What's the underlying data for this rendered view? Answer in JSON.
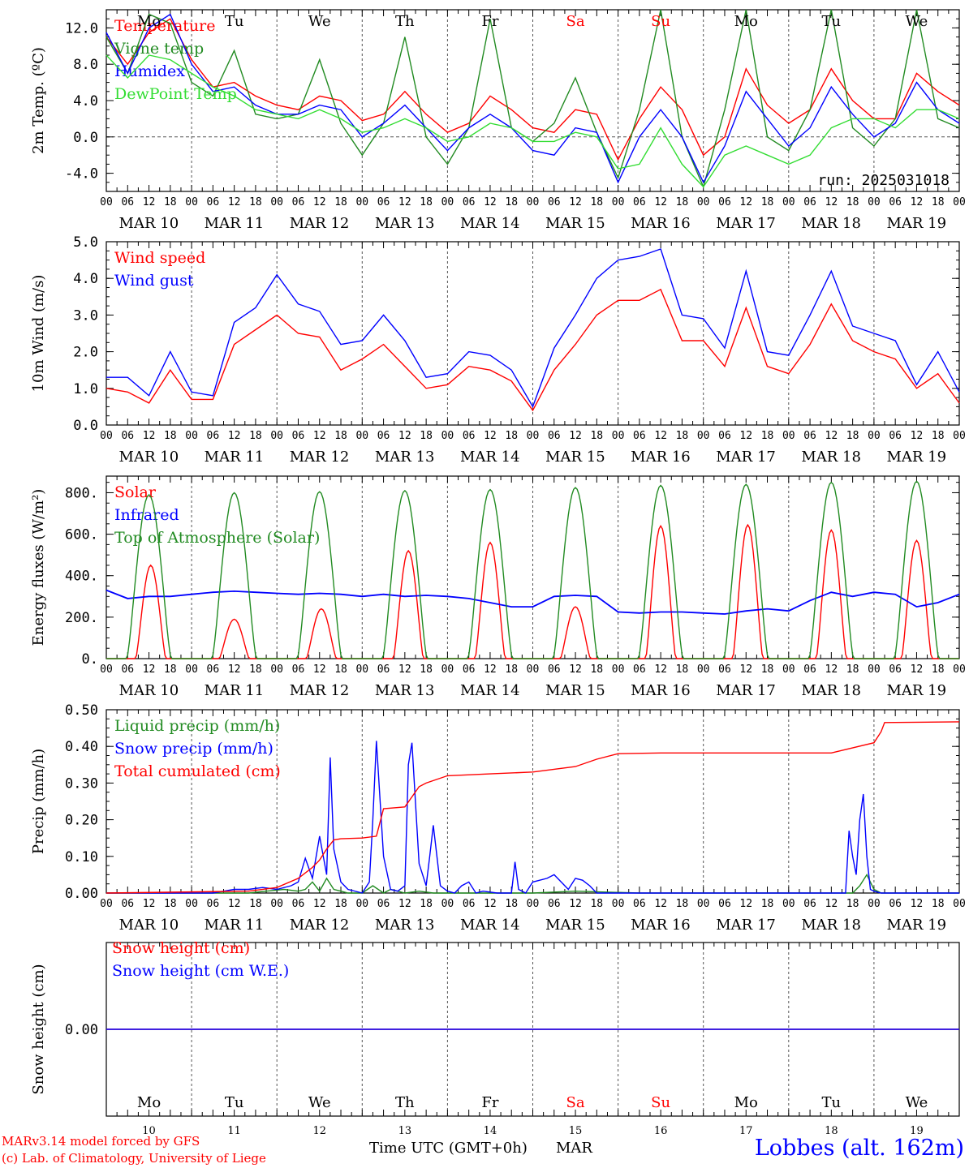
{
  "colors": {
    "red": "#ff0000",
    "green": "#228b22",
    "blue": "#0000ff",
    "lightgreen": "#33dd33",
    "black": "#000000"
  },
  "day_names": [
    {
      "label": "Mo",
      "weekend": false
    },
    {
      "label": "Tu",
      "weekend": false
    },
    {
      "label": "We",
      "weekend": false
    },
    {
      "label": "Th",
      "weekend": false
    },
    {
      "label": "Fr",
      "weekend": false
    },
    {
      "label": "Sa",
      "weekend": true
    },
    {
      "label": "Su",
      "weekend": true
    },
    {
      "label": "Mo",
      "weekend": false
    },
    {
      "label": "Tu",
      "weekend": false
    },
    {
      "label": "We",
      "weekend": false
    }
  ],
  "date_labels": [
    "MAR 10",
    "MAR 11",
    "MAR 12",
    "MAR 13",
    "MAR 14",
    "MAR 15",
    "MAR 16",
    "MAR 17",
    "MAR 18",
    "MAR 19"
  ],
  "hour_ticks": [
    "00",
    "06",
    "12",
    "18"
  ],
  "final_hour_tick": "00",
  "day_numbers": [
    "10",
    "11",
    "12",
    "13",
    "14",
    "15",
    "16",
    "17",
    "18",
    "19"
  ],
  "footer": {
    "model_line": "MARv3.14 model forced by GFS",
    "credit_line": "(c) Lab. of Climatology, University of Liege",
    "xlabel": "Time UTC (GMT+0h)",
    "month": "MAR",
    "station": "Lobbes (alt. 162m)"
  },
  "chart_data": [
    {
      "type": "line",
      "ylabel": "2m Temp. (ºC)",
      "ylim": [
        -6,
        14
      ],
      "yticks": [
        -4,
        0,
        4,
        8,
        12
      ],
      "ytick_labels": [
        "-4.0",
        "0.0",
        "4.0",
        "8.0",
        "12.0"
      ],
      "zero_line": true,
      "run_label": "run: 2025031018",
      "x_unit": "hours since MAR 10 00 UTC",
      "series": [
        {
          "name": "Temperature",
          "color": "red",
          "x": [
            0,
            6,
            12,
            18,
            24,
            30,
            36,
            42,
            48,
            54,
            60,
            66,
            72,
            78,
            84,
            90,
            96,
            102,
            108,
            114,
            120,
            126,
            132,
            138,
            144,
            150,
            156,
            162,
            168,
            174,
            180,
            186,
            192,
            198,
            204,
            210,
            216,
            222,
            228,
            234,
            240
          ],
          "y": [
            11,
            8,
            11.5,
            13,
            8.5,
            5.5,
            6,
            4.5,
            3.5,
            3,
            4.5,
            4,
            1.8,
            2.5,
            5,
            2.5,
            0.5,
            1.5,
            4.5,
            3,
            1,
            0.5,
            3,
            2.5,
            -2.5,
            2,
            5.5,
            3,
            -2,
            0,
            7.5,
            3.5,
            1.5,
            3,
            7.5,
            4,
            2,
            2,
            7,
            5,
            3.5
          ]
        },
        {
          "name": "Vigne temp",
          "color": "green",
          "x": [
            0,
            6,
            12,
            18,
            24,
            30,
            36,
            42,
            48,
            54,
            60,
            66,
            72,
            78,
            84,
            90,
            96,
            102,
            108,
            114,
            120,
            126,
            132,
            138,
            144,
            150,
            156,
            162,
            168,
            174,
            180,
            186,
            192,
            198,
            204,
            210,
            216,
            222,
            228,
            234,
            240
          ],
          "y": [
            11,
            7,
            13.5,
            12.5,
            6,
            4.5,
            9.5,
            2.5,
            2,
            2.5,
            8.5,
            1.5,
            -2,
            1.5,
            11,
            0,
            -3,
            1,
            13,
            1,
            -0.5,
            1.5,
            6.5,
            0.5,
            -4.5,
            3,
            14,
            0,
            -5.5,
            3,
            14,
            0,
            -1.5,
            3,
            14,
            1,
            -1,
            2,
            14,
            2,
            1
          ]
        },
        {
          "name": "Humidex",
          "color": "blue",
          "x": [
            0,
            6,
            12,
            18,
            24,
            30,
            36,
            42,
            48,
            54,
            60,
            66,
            72,
            78,
            84,
            90,
            96,
            102,
            108,
            114,
            120,
            126,
            132,
            138,
            144,
            150,
            156,
            162,
            168,
            174,
            180,
            186,
            192,
            198,
            204,
            210,
            216,
            222,
            228,
            234,
            240
          ],
          "y": [
            11.5,
            7,
            12,
            13.5,
            8,
            5,
            5.5,
            3.5,
            2.5,
            2.5,
            3.5,
            3,
            0,
            1.5,
            3.5,
            1,
            -1.5,
            1,
            2.5,
            1,
            -1.5,
            -2,
            1,
            0.5,
            -5,
            0,
            3,
            0,
            -5,
            -1,
            5,
            2,
            -1,
            1,
            5.5,
            2.5,
            0,
            1.5,
            6,
            3,
            1.5
          ]
        },
        {
          "name": "DewPoint Temp",
          "color": "lightgreen",
          "x": [
            0,
            6,
            12,
            18,
            24,
            30,
            36,
            42,
            48,
            54,
            60,
            66,
            72,
            78,
            84,
            90,
            96,
            102,
            108,
            114,
            120,
            126,
            132,
            138,
            144,
            150,
            156,
            162,
            168,
            174,
            180,
            186,
            192,
            198,
            204,
            210,
            216,
            222,
            228,
            234,
            240
          ],
          "y": [
            9,
            6.5,
            9,
            8.5,
            7,
            5.5,
            4.5,
            3,
            2.5,
            2,
            3,
            2,
            0.5,
            1,
            2,
            1,
            -0.5,
            0,
            1.5,
            1,
            -0.5,
            -0.5,
            0.5,
            0,
            -3.5,
            -3,
            1,
            -3,
            -5.5,
            -2,
            -1,
            -2,
            -3,
            -2,
            1,
            2,
            2,
            1,
            3,
            3,
            2
          ]
        }
      ]
    },
    {
      "type": "line",
      "ylabel": "10m Wind (m/s)",
      "ylim": [
        0,
        5
      ],
      "yticks": [
        0,
        1,
        2,
        3,
        4,
        5
      ],
      "ytick_labels": [
        "0.0",
        "1.0",
        "2.0",
        "3.0",
        "4.0",
        "5.0"
      ],
      "series": [
        {
          "name": "Wind speed",
          "color": "red",
          "x": [
            0,
            6,
            12,
            18,
            24,
            30,
            36,
            42,
            48,
            54,
            60,
            66,
            72,
            78,
            84,
            90,
            96,
            102,
            108,
            114,
            120,
            126,
            132,
            138,
            144,
            150,
            156,
            162,
            168,
            174,
            180,
            186,
            192,
            198,
            204,
            210,
            216,
            222,
            228,
            234,
            240
          ],
          "y": [
            1,
            0.9,
            0.6,
            1.5,
            0.7,
            0.7,
            2.2,
            2.6,
            3,
            2.5,
            2.4,
            1.5,
            1.8,
            2.2,
            1.6,
            1,
            1.1,
            1.6,
            1.5,
            1.2,
            0.4,
            1.5,
            2.2,
            3,
            3.4,
            3.4,
            3.7,
            2.3,
            2.3,
            1.6,
            3.2,
            1.6,
            1.4,
            2.2,
            3.3,
            2.3,
            2,
            1.8,
            1,
            1.4,
            0.6
          ]
        },
        {
          "name": "Wind gust",
          "color": "blue",
          "x": [
            0,
            6,
            12,
            18,
            24,
            30,
            36,
            42,
            48,
            54,
            60,
            66,
            72,
            78,
            84,
            90,
            96,
            102,
            108,
            114,
            120,
            126,
            132,
            138,
            144,
            150,
            156,
            162,
            168,
            174,
            180,
            186,
            192,
            198,
            204,
            210,
            216,
            222,
            228,
            234,
            240
          ],
          "y": [
            1.3,
            1.3,
            0.8,
            2,
            0.9,
            0.8,
            2.8,
            3.2,
            4.1,
            3.3,
            3.1,
            2.2,
            2.3,
            3,
            2.3,
            1.3,
            1.4,
            2,
            1.9,
            1.5,
            0.5,
            2.1,
            3,
            4,
            4.5,
            4.6,
            4.8,
            3,
            2.9,
            2.1,
            4.2,
            2,
            1.9,
            3,
            4.2,
            2.7,
            2.5,
            2.3,
            1.1,
            2,
            0.9
          ]
        }
      ]
    },
    {
      "type": "line",
      "ylabel": "Energy fluxes (W/m²)",
      "ylim": [
        0,
        880
      ],
      "yticks": [
        0,
        200,
        400,
        600,
        800
      ],
      "ytick_labels": [
        "0.",
        "200.",
        "400.",
        "600.",
        "800."
      ],
      "series": [
        {
          "name": "Solar",
          "color": "red",
          "peak_hours": [
            12.5,
            12,
            12.5,
            13,
            12,
            12,
            12,
            12.5,
            12,
            12
          ],
          "peaks": [
            450,
            190,
            240,
            520,
            560,
            250,
            640,
            645,
            620,
            570
          ]
        },
        {
          "name": "Infrared",
          "color": "blue",
          "x": [
            0,
            6,
            12,
            18,
            24,
            30,
            36,
            42,
            48,
            54,
            60,
            66,
            72,
            78,
            84,
            90,
            96,
            102,
            108,
            114,
            120,
            126,
            132,
            138,
            144,
            150,
            156,
            162,
            168,
            174,
            180,
            186,
            192,
            198,
            204,
            210,
            216,
            222,
            228,
            234,
            240
          ],
          "y": [
            330,
            290,
            300,
            300,
            310,
            320,
            325,
            320,
            315,
            310,
            315,
            310,
            300,
            310,
            300,
            305,
            300,
            290,
            270,
            250,
            250,
            300,
            305,
            300,
            225,
            220,
            225,
            225,
            220,
            215,
            230,
            240,
            230,
            280,
            320,
            300,
            320,
            310,
            250,
            270,
            310
          ]
        },
        {
          "name": "Top of Atmosphere (Solar)",
          "color": "green",
          "peak_hours": [
            12,
            12,
            12,
            12,
            12,
            12,
            12,
            12,
            12,
            12
          ],
          "peaks": [
            790,
            800,
            805,
            810,
            815,
            825,
            835,
            840,
            850,
            855
          ]
        }
      ]
    },
    {
      "type": "line",
      "ylabel": "Precip (mm/h)",
      "ylim": [
        0,
        0.5
      ],
      "yticks": [
        0,
        0.1,
        0.2,
        0.3,
        0.4,
        0.5
      ],
      "ytick_labels": [
        "0.00",
        "0.10",
        "0.20",
        "0.30",
        "0.40",
        "0.50"
      ],
      "series": [
        {
          "name": "Liquid precip (mm/h)",
          "color": "green",
          "x": [
            0,
            40,
            45,
            50,
            54,
            56,
            58,
            60,
            62,
            64,
            66,
            68,
            72,
            75,
            78,
            80,
            84,
            88,
            92,
            100,
            120,
            132,
            150,
            160,
            172,
            200,
            210,
            212,
            214,
            216,
            218,
            240
          ],
          "y": [
            0,
            0,
            0.005,
            0.01,
            0.005,
            0.01,
            0.03,
            0.005,
            0.04,
            0.01,
            0.005,
            0,
            0,
            0.02,
            0,
            0.01,
            0,
            0.005,
            0,
            0,
            0,
            0.005,
            0,
            0,
            0,
            0,
            0,
            0.02,
            0.05,
            0.01,
            0,
            0
          ]
        },
        {
          "name": "Snow precip (mm/h)",
          "color": "blue",
          "x": [
            0,
            30,
            36,
            40,
            44,
            48,
            52,
            54,
            56,
            58,
            60,
            62,
            63,
            64,
            66,
            68,
            72,
            74,
            75,
            76,
            78,
            80,
            82,
            84,
            85,
            86,
            88,
            90,
            91,
            92,
            94,
            96,
            98,
            100,
            102,
            104,
            106,
            110,
            114,
            115,
            116,
            118,
            120,
            124,
            126,
            128,
            130,
            132,
            134,
            136,
            138,
            140,
            150,
            200,
            208,
            209,
            210,
            211,
            212,
            213,
            214,
            215,
            216,
            218,
            240
          ],
          "y": [
            0,
            0,
            0.01,
            0.01,
            0.015,
            0.01,
            0.02,
            0.03,
            0.095,
            0.04,
            0.155,
            0.05,
            0.37,
            0.12,
            0.03,
            0.01,
            0,
            0.03,
            0.2,
            0.415,
            0.1,
            0.01,
            0.005,
            0.02,
            0.35,
            0.41,
            0.08,
            0.02,
            0.1,
            0.185,
            0.02,
            0.005,
            0,
            0.02,
            0.03,
            0,
            0.005,
            0,
            0,
            0.085,
            0.01,
            0,
            0.03,
            0.04,
            0.05,
            0.03,
            0.01,
            0.04,
            0.035,
            0.02,
            0,
            0,
            0,
            0,
            0,
            0.17,
            0.1,
            0.05,
            0.2,
            0.27,
            0.1,
            0.01,
            0.005,
            0,
            0
          ]
        },
        {
          "name": "Total cumulated (cm)",
          "color": "red",
          "x": [
            0,
            40,
            48,
            54,
            58,
            60,
            62,
            64,
            66,
            72,
            76,
            78,
            84,
            88,
            90,
            96,
            108,
            120,
            132,
            138,
            144,
            156,
            168,
            192,
            204,
            216,
            218,
            219,
            240
          ],
          "y": [
            0,
            0.005,
            0.015,
            0.04,
            0.07,
            0.09,
            0.12,
            0.145,
            0.148,
            0.15,
            0.155,
            0.23,
            0.235,
            0.29,
            0.3,
            0.32,
            0.325,
            0.33,
            0.345,
            0.365,
            0.38,
            0.382,
            0.382,
            0.382,
            0.382,
            0.41,
            0.44,
            0.465,
            0.467
          ]
        }
      ]
    },
    {
      "type": "line",
      "ylabel": "Snow height (cm)",
      "ylim": [
        -1,
        1
      ],
      "yticks": [
        0
      ],
      "ytick_labels": [
        "0.00"
      ],
      "series": [
        {
          "name": "Snow height (cm)",
          "color": "red",
          "x": [
            0,
            240
          ],
          "y": [
            0,
            0
          ]
        },
        {
          "name": "Snow height (cm W.E.)",
          "color": "blue",
          "x": [
            0,
            240
          ],
          "y": [
            0,
            0
          ]
        }
      ]
    }
  ]
}
